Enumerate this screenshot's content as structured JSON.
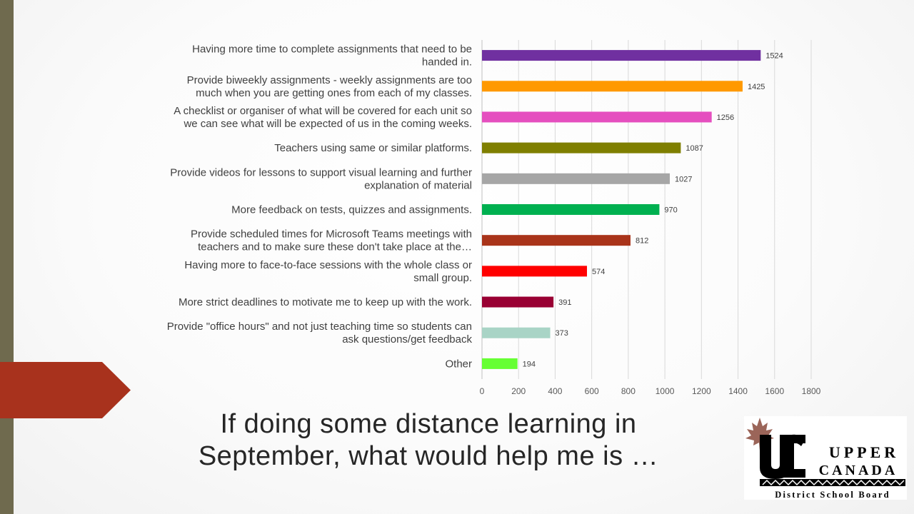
{
  "slide": {
    "title_line1": "If doing some distance learning in",
    "title_line2": "September, what would help me is …"
  },
  "logo": {
    "line1": "UPPER",
    "line2": "CANADA",
    "line3": "District School Board",
    "icon": "maple-leaf-icon",
    "monogram": "UC"
  },
  "colors": {
    "left_strip": "#6f6a4e",
    "chevron": "#a8321d"
  },
  "chart_data": {
    "type": "bar",
    "orientation": "horizontal",
    "title": "",
    "xlabel": "",
    "ylabel": "",
    "xlim": [
      0,
      1800
    ],
    "xticks": [
      0,
      200,
      400,
      600,
      800,
      1000,
      1200,
      1400,
      1600,
      1800
    ],
    "grid": "vertical",
    "legend": "none",
    "categories": [
      [
        "Having more time to complete assignments that need to be",
        "handed in."
      ],
      [
        "Provide biweekly assignments - weekly assignments are too",
        "much when you are getting ones from each of my classes."
      ],
      [
        "A checklist or organiser of what will be covered for each unit so",
        "we can see what will be expected of us in the coming weeks."
      ],
      [
        "Teachers using same or similar platforms."
      ],
      [
        "Provide videos for lessons to support visual learning and further",
        "explanation of material"
      ],
      [
        "More feedback on tests, quizzes and assignments."
      ],
      [
        "Provide scheduled times for Microsoft Teams meetings with",
        "teachers and to make sure these don't take place at the…"
      ],
      [
        "Having more to face-to-face sessions with the whole class or",
        "small group."
      ],
      [
        "More strict deadlines to motivate me to keep up with the work."
      ],
      [
        "Provide \"office hours\" and not just teaching time so students can",
        "ask questions/get feedback"
      ],
      [
        "Other"
      ]
    ],
    "values": [
      1524,
      1425,
      1256,
      1087,
      1027,
      970,
      812,
      574,
      391,
      373,
      194
    ],
    "bar_colors": [
      "#7030a0",
      "#ff9900",
      "#e54fbf",
      "#7f7f00",
      "#a6a6a6",
      "#00b050",
      "#a9341a",
      "#ff0000",
      "#990033",
      "#a9d4c6",
      "#66ff33"
    ]
  }
}
